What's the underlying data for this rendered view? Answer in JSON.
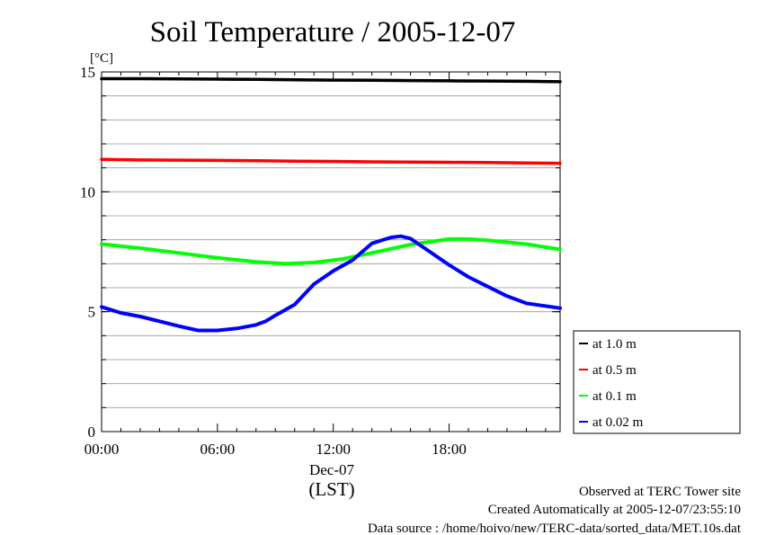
{
  "chart_data": {
    "type": "line",
    "title": "Soil Temperature / 2005-12-07",
    "ylabel_unit": "[°C]",
    "xlabel_date": "Dec-07",
    "xlabel": "(LST)",
    "xlim": [
      0,
      23.75
    ],
    "ylim": [
      0,
      15
    ],
    "x_ticks": [
      0,
      6,
      12,
      18
    ],
    "x_tick_labels": [
      "00:00",
      "06:00",
      "12:00",
      "18:00"
    ],
    "y_ticks": [
      0,
      5,
      10,
      15
    ],
    "y_tick_labels": [
      "0",
      "5",
      "10",
      "15"
    ],
    "y_minor_step": 1,
    "grid": "horizontal",
    "legend_position": "right",
    "series": [
      {
        "name": "at 1.0 m",
        "color": "#000000",
        "x": [
          0,
          2,
          4,
          6,
          8,
          10,
          12,
          14,
          16,
          18,
          20,
          22,
          23.75
        ],
        "values": [
          14.72,
          14.72,
          14.71,
          14.7,
          14.69,
          14.67,
          14.66,
          14.65,
          14.64,
          14.63,
          14.62,
          14.61,
          14.59
        ]
      },
      {
        "name": "at 0.5 m",
        "color": "#ff0000",
        "x": [
          0,
          2,
          4,
          6,
          8,
          10,
          12,
          14,
          16,
          18,
          20,
          22,
          23.75
        ],
        "values": [
          11.35,
          11.33,
          11.32,
          11.31,
          11.3,
          11.28,
          11.27,
          11.25,
          11.24,
          11.23,
          11.22,
          11.2,
          11.19
        ]
      },
      {
        "name": "at 0.1 m",
        "color": "#00ff00",
        "x": [
          0,
          2,
          4,
          6,
          8,
          9.5,
          11,
          12.5,
          14,
          16,
          18,
          19,
          20,
          22,
          23.75
        ],
        "values": [
          7.82,
          7.65,
          7.45,
          7.25,
          7.08,
          7.0,
          7.05,
          7.2,
          7.45,
          7.8,
          8.03,
          8.03,
          7.98,
          7.82,
          7.6
        ]
      },
      {
        "name": "at 0.02 m",
        "color": "#0000ff",
        "x": [
          0,
          1,
          2,
          3,
          4,
          5,
          6,
          7,
          8,
          8.5,
          9,
          10,
          11,
          12,
          13,
          13.5,
          14,
          15,
          15.5,
          16,
          17,
          18,
          19,
          20,
          21,
          22,
          23.75
        ],
        "values": [
          5.2,
          4.95,
          4.8,
          4.6,
          4.4,
          4.22,
          4.22,
          4.3,
          4.45,
          4.6,
          4.85,
          5.3,
          6.15,
          6.7,
          7.15,
          7.5,
          7.85,
          8.1,
          8.15,
          8.05,
          7.5,
          6.95,
          6.45,
          6.05,
          5.65,
          5.35,
          5.15
        ]
      }
    ]
  },
  "footer": {
    "line1": "Observed at TERC Tower site",
    "line2": "Created Automatically at 2005-12-07/23:55:10",
    "line3": "Data source : /home/hoivo/new/TERC-data/sorted_data/MET.10s.dat"
  }
}
